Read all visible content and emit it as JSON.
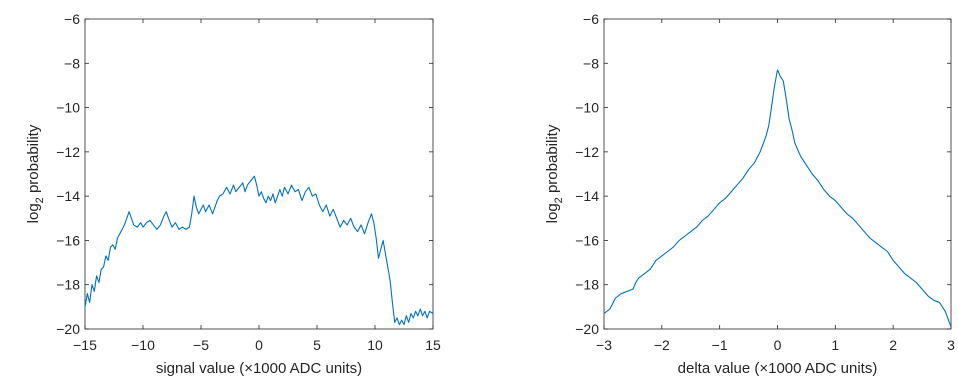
{
  "chart_data": [
    {
      "type": "line",
      "title": "",
      "xlabel": "signal value (×1000 ADC units)",
      "ylabel_base": "log",
      "ylabel_sub": "2",
      "ylabel_rest": " probability",
      "xlim": [
        -15,
        15
      ],
      "ylim": [
        -20,
        -6
      ],
      "xticks": [
        -15,
        -10,
        -5,
        0,
        5,
        10,
        15
      ],
      "yticks": [
        -20,
        -18,
        -16,
        -14,
        -12,
        -10,
        -8,
        -6
      ],
      "xtick_labels": [
        "−15",
        "−10",
        "−5",
        "0",
        "5",
        "10",
        "15"
      ],
      "ytick_labels": [
        "−20",
        "−18",
        "−16",
        "−14",
        "−12",
        "−10",
        "−8",
        "−6"
      ],
      "grid": false,
      "series": [
        {
          "color": "#0072BD",
          "points": [
            [
              -15.0,
              -19.0
            ],
            [
              -14.8,
              -18.4
            ],
            [
              -14.6,
              -18.8
            ],
            [
              -14.4,
              -18.0
            ],
            [
              -14.2,
              -18.3
            ],
            [
              -14.0,
              -17.6
            ],
            [
              -13.8,
              -17.9
            ],
            [
              -13.6,
              -17.3
            ],
            [
              -13.4,
              -17.2
            ],
            [
              -13.2,
              -16.7
            ],
            [
              -13.0,
              -16.9
            ],
            [
              -12.8,
              -16.3
            ],
            [
              -12.6,
              -16.2
            ],
            [
              -12.4,
              -16.4
            ],
            [
              -12.2,
              -15.9
            ],
            [
              -12.0,
              -15.7
            ],
            [
              -11.8,
              -15.5
            ],
            [
              -11.6,
              -15.3
            ],
            [
              -11.4,
              -15.0
            ],
            [
              -11.2,
              -14.7
            ],
            [
              -11.0,
              -15.0
            ],
            [
              -10.8,
              -15.3
            ],
            [
              -10.5,
              -15.4
            ],
            [
              -10.2,
              -15.2
            ],
            [
              -10.0,
              -15.4
            ],
            [
              -9.7,
              -15.2
            ],
            [
              -9.4,
              -15.1
            ],
            [
              -9.1,
              -15.3
            ],
            [
              -8.8,
              -15.5
            ],
            [
              -8.5,
              -15.3
            ],
            [
              -8.2,
              -14.9
            ],
            [
              -8.0,
              -14.7
            ],
            [
              -7.8,
              -15.0
            ],
            [
              -7.5,
              -15.4
            ],
            [
              -7.2,
              -15.2
            ],
            [
              -6.9,
              -15.5
            ],
            [
              -6.6,
              -15.4
            ],
            [
              -6.3,
              -15.5
            ],
            [
              -6.0,
              -15.4
            ],
            [
              -5.8,
              -14.8
            ],
            [
              -5.6,
              -14.0
            ],
            [
              -5.4,
              -14.5
            ],
            [
              -5.2,
              -14.8
            ],
            [
              -5.0,
              -14.6
            ],
            [
              -4.8,
              -14.4
            ],
            [
              -4.6,
              -14.7
            ],
            [
              -4.3,
              -14.4
            ],
            [
              -4.0,
              -14.8
            ],
            [
              -3.8,
              -14.5
            ],
            [
              -3.6,
              -14.2
            ],
            [
              -3.4,
              -14.0
            ],
            [
              -3.1,
              -13.9
            ],
            [
              -2.8,
              -13.6
            ],
            [
              -2.5,
              -13.9
            ],
            [
              -2.2,
              -13.5
            ],
            [
              -2.0,
              -13.8
            ],
            [
              -1.7,
              -13.6
            ],
            [
              -1.4,
              -13.4
            ],
            [
              -1.2,
              -13.8
            ],
            [
              -1.0,
              -13.5
            ],
            [
              -0.7,
              -13.3
            ],
            [
              -0.4,
              -13.1
            ],
            [
              -0.2,
              -13.5
            ],
            [
              0.0,
              -14.0
            ],
            [
              0.2,
              -13.8
            ],
            [
              0.4,
              -14.1
            ],
            [
              0.6,
              -14.3
            ],
            [
              0.8,
              -14.0
            ],
            [
              1.0,
              -14.2
            ],
            [
              1.2,
              -13.9
            ],
            [
              1.4,
              -14.3
            ],
            [
              1.6,
              -14.0
            ],
            [
              1.8,
              -13.7
            ],
            [
              2.0,
              -14.0
            ],
            [
              2.2,
              -13.6
            ],
            [
              2.5,
              -13.9
            ],
            [
              2.8,
              -13.5
            ],
            [
              3.1,
              -13.8
            ],
            [
              3.4,
              -13.7
            ],
            [
              3.7,
              -14.2
            ],
            [
              4.0,
              -13.8
            ],
            [
              4.3,
              -13.6
            ],
            [
              4.6,
              -14.0
            ],
            [
              4.9,
              -13.9
            ],
            [
              5.2,
              -14.4
            ],
            [
              5.5,
              -14.7
            ],
            [
              5.8,
              -14.4
            ],
            [
              6.1,
              -14.9
            ],
            [
              6.4,
              -14.6
            ],
            [
              6.7,
              -15.0
            ],
            [
              7.0,
              -15.4
            ],
            [
              7.3,
              -15.1
            ],
            [
              7.6,
              -15.3
            ],
            [
              7.9,
              -15.0
            ],
            [
              8.2,
              -15.4
            ],
            [
              8.5,
              -15.6
            ],
            [
              8.8,
              -15.3
            ],
            [
              9.1,
              -15.7
            ],
            [
              9.4,
              -15.2
            ],
            [
              9.7,
              -14.8
            ],
            [
              9.9,
              -15.2
            ],
            [
              10.1,
              -15.9
            ],
            [
              10.3,
              -16.8
            ],
            [
              10.5,
              -16.4
            ],
            [
              10.7,
              -16.0
            ],
            [
              10.9,
              -16.6
            ],
            [
              11.1,
              -17.2
            ],
            [
              11.3,
              -17.8
            ],
            [
              11.5,
              -18.8
            ],
            [
              11.7,
              -19.7
            ],
            [
              11.9,
              -19.5
            ],
            [
              12.1,
              -19.8
            ],
            [
              12.3,
              -19.6
            ],
            [
              12.5,
              -19.8
            ],
            [
              12.7,
              -19.4
            ],
            [
              12.9,
              -19.7
            ],
            [
              13.1,
              -19.3
            ],
            [
              13.3,
              -19.5
            ],
            [
              13.5,
              -19.2
            ],
            [
              13.7,
              -19.4
            ],
            [
              13.9,
              -19.1
            ],
            [
              14.1,
              -19.4
            ],
            [
              14.3,
              -19.2
            ],
            [
              14.5,
              -19.5
            ],
            [
              14.7,
              -19.2
            ],
            [
              15.0,
              -19.3
            ]
          ]
        }
      ]
    },
    {
      "type": "line",
      "title": "",
      "xlabel": "delta value (×1000 ADC units)",
      "ylabel_base": "log",
      "ylabel_sub": "2",
      "ylabel_rest": " probability",
      "xlim": [
        -3,
        3
      ],
      "ylim": [
        -20,
        -6
      ],
      "xticks": [
        -3,
        -2,
        -1,
        0,
        1,
        2,
        3
      ],
      "yticks": [
        -20,
        -18,
        -16,
        -14,
        -12,
        -10,
        -8,
        -6
      ],
      "xtick_labels": [
        "−3",
        "−2",
        "−1",
        "0",
        "1",
        "2",
        "3"
      ],
      "ytick_labels": [
        "−20",
        "−18",
        "−16",
        "−14",
        "−12",
        "−10",
        "−8",
        "−6"
      ],
      "grid": false,
      "series": [
        {
          "color": "#0072BD",
          "points": [
            [
              -3.0,
              -19.3
            ],
            [
              -2.9,
              -19.1
            ],
            [
              -2.8,
              -18.6
            ],
            [
              -2.7,
              -18.4
            ],
            [
              -2.6,
              -18.3
            ],
            [
              -2.5,
              -18.2
            ],
            [
              -2.45,
              -17.9
            ],
            [
              -2.4,
              -17.7
            ],
            [
              -2.3,
              -17.5
            ],
            [
              -2.2,
              -17.3
            ],
            [
              -2.1,
              -16.9
            ],
            [
              -2.0,
              -16.7
            ],
            [
              -1.9,
              -16.5
            ],
            [
              -1.8,
              -16.3
            ],
            [
              -1.7,
              -16.0
            ],
            [
              -1.6,
              -15.8
            ],
            [
              -1.5,
              -15.6
            ],
            [
              -1.4,
              -15.4
            ],
            [
              -1.3,
              -15.1
            ],
            [
              -1.2,
              -14.9
            ],
            [
              -1.1,
              -14.6
            ],
            [
              -1.0,
              -14.3
            ],
            [
              -0.9,
              -14.1
            ],
            [
              -0.8,
              -13.8
            ],
            [
              -0.7,
              -13.5
            ],
            [
              -0.6,
              -13.2
            ],
            [
              -0.5,
              -12.8
            ],
            [
              -0.4,
              -12.5
            ],
            [
              -0.3,
              -12.0
            ],
            [
              -0.2,
              -11.3
            ],
            [
              -0.15,
              -10.8
            ],
            [
              -0.1,
              -9.9
            ],
            [
              -0.05,
              -9.0
            ],
            [
              0.0,
              -8.3
            ],
            [
              0.05,
              -8.6
            ],
            [
              0.1,
              -8.8
            ],
            [
              0.15,
              -9.6
            ],
            [
              0.2,
              -10.5
            ],
            [
              0.25,
              -11.0
            ],
            [
              0.3,
              -11.6
            ],
            [
              0.4,
              -12.2
            ],
            [
              0.5,
              -12.6
            ],
            [
              0.6,
              -13.0
            ],
            [
              0.7,
              -13.3
            ],
            [
              0.8,
              -13.7
            ],
            [
              0.9,
              -14.0
            ],
            [
              1.0,
              -14.2
            ],
            [
              1.1,
              -14.5
            ],
            [
              1.2,
              -14.8
            ],
            [
              1.3,
              -15.0
            ],
            [
              1.4,
              -15.3
            ],
            [
              1.5,
              -15.6
            ],
            [
              1.6,
              -15.9
            ],
            [
              1.7,
              -16.1
            ],
            [
              1.8,
              -16.3
            ],
            [
              1.9,
              -16.5
            ],
            [
              2.0,
              -16.9
            ],
            [
              2.1,
              -17.2
            ],
            [
              2.2,
              -17.5
            ],
            [
              2.3,
              -17.7
            ],
            [
              2.4,
              -17.9
            ],
            [
              2.5,
              -18.2
            ],
            [
              2.6,
              -18.5
            ],
            [
              2.7,
              -18.7
            ],
            [
              2.8,
              -18.8
            ],
            [
              2.9,
              -19.2
            ],
            [
              3.0,
              -19.9
            ]
          ]
        }
      ]
    }
  ]
}
